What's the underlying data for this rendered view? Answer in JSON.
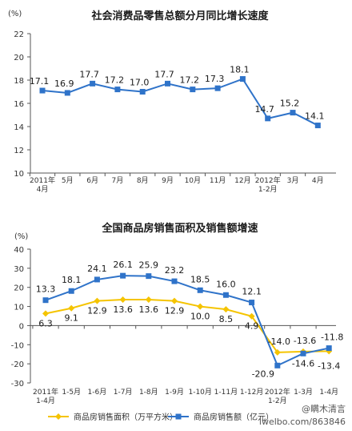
{
  "watermark": {
    "line1": "@瞒木清言",
    "line2": "lwelbo.com/863846"
  },
  "chart_data": [
    {
      "type": "line",
      "title": "社会消费品零售总额分月同比增长速度",
      "unit": "(%)",
      "categories": [
        "2011年|4月",
        "5月",
        "6月",
        "7月",
        "8月",
        "9月",
        "10月",
        "11月",
        "12月",
        "2012年|1-2月",
        "3月",
        "4月"
      ],
      "series": [
        {
          "name": "",
          "color": "#2f73c9",
          "values": [
            17.1,
            16.9,
            17.7,
            17.2,
            17.0,
            17.7,
            17.2,
            17.3,
            18.1,
            14.7,
            15.2,
            14.1
          ],
          "labels": [
            "17.1",
            "16.9",
            "17.7",
            "17.2",
            "17.0",
            "17.7",
            "17.2",
            "17.3",
            "18.1",
            "14.7",
            "15.2",
            "14.1"
          ]
        }
      ],
      "ylim": [
        10,
        22
      ],
      "yticks": [
        10,
        12,
        14,
        16,
        18,
        20,
        22
      ],
      "grid": false
    },
    {
      "type": "line",
      "title": "全国商品房销售面积及销售额增速",
      "unit": "(%)",
      "categories": [
        "2011年|1-4月",
        "1-5月",
        "1-6月",
        "1-7月",
        "1-8月",
        "1-9月",
        "1-10月",
        "1-11月",
        "1-12月",
        "2012年|1-2月",
        "1-3月",
        "1-4月"
      ],
      "series": [
        {
          "name": "商品房销售面积（万平方米）",
          "color": "#f5c400",
          "marker": "diamond",
          "values": [
            6.3,
            9.1,
            12.9,
            13.6,
            13.6,
            12.9,
            10.0,
            8.5,
            4.9,
            -14.0,
            -13.6,
            -13.4
          ],
          "labels": [
            "6.3",
            "9.1",
            "12.9",
            "13.6",
            "13.6",
            "12.9",
            "10.0",
            "8.5",
            "4.9",
            "-14.0",
            "-13.6",
            "-13.4"
          ]
        },
        {
          "name": "商品房销售额（亿元）",
          "color": "#2f73c9",
          "marker": "square",
          "values": [
            13.3,
            18.1,
            24.1,
            26.1,
            25.9,
            23.2,
            18.5,
            16.0,
            12.1,
            -20.9,
            -14.6,
            -11.8
          ],
          "labels": [
            "13.3",
            "18.1",
            "24.1",
            "26.1",
            "25.9",
            "23.2",
            "18.5",
            "16.0",
            "12.1",
            "-20.9",
            "-14.6",
            "-11.8"
          ]
        }
      ],
      "ylim": [
        -30,
        40
      ],
      "yticks": [
        -30,
        -20,
        -10,
        0,
        10,
        20,
        30,
        40
      ],
      "grid": false,
      "legend": "bottom"
    }
  ]
}
